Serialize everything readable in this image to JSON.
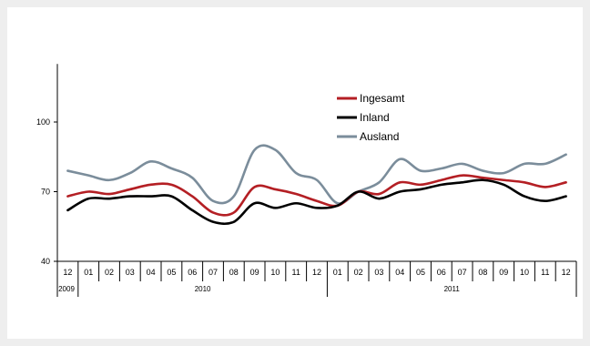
{
  "chart_data": {
    "type": "line",
    "title": "",
    "xlabel": "",
    "ylabel": "",
    "ylim": [
      40,
      125
    ],
    "yticks": [
      40,
      70,
      100
    ],
    "grid": false,
    "legend_position": "top-center",
    "months": [
      "12",
      "01",
      "02",
      "03",
      "04",
      "05",
      "06",
      "07",
      "08",
      "09",
      "10",
      "11",
      "12",
      "01",
      "02",
      "03",
      "04",
      "05",
      "06",
      "07",
      "08",
      "09",
      "10",
      "11",
      "12"
    ],
    "years": [
      {
        "label": "2009",
        "span": 1
      },
      {
        "label": "2010",
        "span": 12
      },
      {
        "label": "2011",
        "span": 12
      }
    ],
    "series": [
      {
        "name": "Ingesamt",
        "color": "#b41f24",
        "values": [
          68,
          70,
          69,
          71,
          73,
          73,
          68,
          61,
          61,
          72,
          71,
          69,
          66,
          64,
          70,
          69,
          74,
          73,
          75,
          77,
          76,
          75,
          74,
          72,
          74
        ]
      },
      {
        "name": "Inland",
        "color": "#000000",
        "values": [
          62,
          67,
          67,
          68,
          68,
          68,
          62,
          57,
          57,
          65,
          63,
          65,
          63,
          64,
          70,
          67,
          70,
          71,
          73,
          74,
          75,
          73,
          68,
          66,
          68
        ]
      },
      {
        "name": "Ausland",
        "color": "#7b8d9b",
        "values": [
          79,
          77,
          75,
          78,
          83,
          80,
          76,
          66,
          68,
          88,
          88,
          78,
          75,
          65,
          70,
          74,
          84,
          79,
          80,
          82,
          79,
          78,
          82,
          82,
          86
        ]
      }
    ]
  }
}
